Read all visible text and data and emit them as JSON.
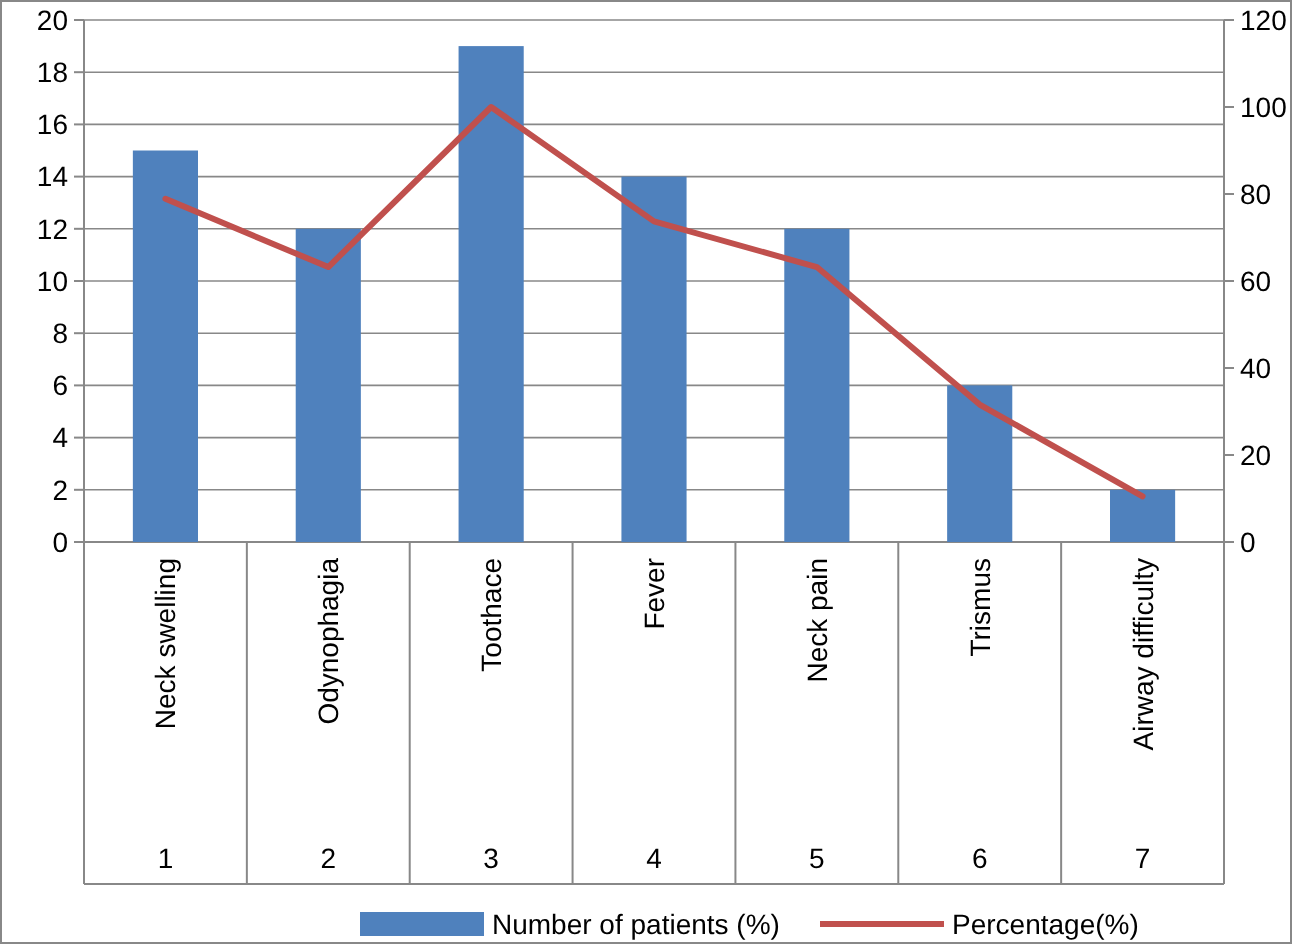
{
  "chart_data": {
    "type": "bar",
    "categories": [
      "Neck swelling",
      "Odynophagia",
      "Toothace",
      "Fever",
      "Neck pain",
      "Trismus",
      "Airway difficulty"
    ],
    "series": [
      {
        "name": "Number of patients (%)",
        "color": "#4f81bd",
        "values": [
          15,
          12,
          19,
          14,
          12,
          6,
          2
        ]
      },
      {
        "name": "Percentage(%)",
        "type": "line",
        "axis": "y2",
        "color": "#c0504d",
        "values": [
          78.9,
          63.2,
          100,
          73.7,
          63.2,
          31.6,
          10.5
        ]
      }
    ],
    "ylim": [
      0,
      20
    ],
    "yticks": [
      0,
      2,
      4,
      6,
      8,
      10,
      12,
      14,
      16,
      18,
      20
    ],
    "y2lim": [
      0,
      120
    ],
    "y2ticks": [
      0,
      20,
      40,
      60,
      80,
      100,
      120
    ],
    "annotations": [
      "1",
      "2",
      "3",
      "4",
      "5",
      "6",
      "7"
    ],
    "grid": "y",
    "legend": "bottom",
    "marker": "none",
    "line_style": "solid"
  }
}
